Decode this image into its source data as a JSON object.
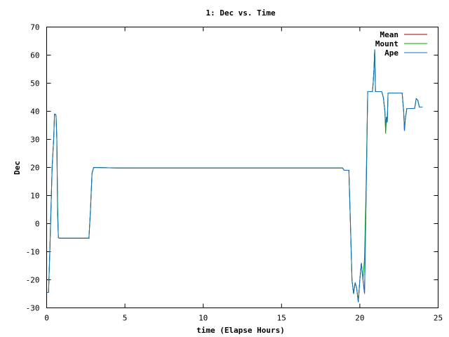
{
  "chart_data": {
    "type": "line",
    "title": "1: Dec vs. Time",
    "xlabel": "time (Elapse Hours)",
    "ylabel": "Dec",
    "xlim": [
      0,
      25
    ],
    "ylim": [
      -30,
      70
    ],
    "xticks": [
      0,
      5,
      10,
      15,
      20,
      25
    ],
    "yticks": [
      -30,
      -20,
      -10,
      0,
      10,
      20,
      30,
      40,
      50,
      60,
      70
    ],
    "xtick_labels": [
      "0",
      "5",
      "10",
      "15",
      "20",
      "25"
    ],
    "ytick_labels": [
      "-30",
      "-20",
      "-10",
      "0",
      "10",
      "20",
      "30",
      "40",
      "50",
      "60",
      "70"
    ],
    "grid": false,
    "legend": "top-right",
    "series": [
      {
        "name": "Mean",
        "color": "#aa0000",
        "x": [
          0,
          0.12,
          0.15,
          0.2,
          0.25,
          0.3,
          0.35,
          0.4,
          0.45,
          0.5,
          0.55,
          0.6,
          0.65,
          0.7,
          0.75,
          0.8,
          0.85,
          0.9,
          1.0,
          1.5,
          2.0,
          2.5,
          2.7,
          2.8,
          2.9,
          3.0,
          4.5,
          10,
          13.8,
          15,
          18.9,
          19.0,
          19.3,
          19.4,
          19.5,
          19.6,
          19.7,
          19.8,
          19.9,
          20.0,
          20.1,
          20.2,
          20.3,
          20.4,
          20.5,
          20.6,
          20.7,
          20.8,
          20.85,
          20.9,
          20.95,
          21.0,
          21.1,
          21.3,
          21.4,
          21.5,
          21.6,
          21.65,
          21.7,
          21.75,
          21.8,
          21.9,
          22.0,
          22.5,
          22.7,
          22.8,
          22.85,
          22.9,
          23.0,
          23.5,
          23.6,
          23.7,
          23.8,
          24.0
        ],
        "y": [
          -24.5,
          -24.5,
          -20,
          -10,
          0,
          10,
          20,
          25,
          30,
          39,
          39,
          38.5,
          30,
          5,
          -5,
          -5.2,
          -5.2,
          -5.2,
          -5.2,
          -5.2,
          -5.2,
          -5.2,
          -5.2,
          5,
          18,
          20,
          19.8,
          19.8,
          19.8,
          19.8,
          19.8,
          19,
          19,
          0,
          -20,
          -25,
          -21,
          -23,
          -28,
          -20,
          -14,
          -20,
          -25,
          10,
          47,
          47,
          47,
          47,
          50,
          55,
          62,
          47,
          47,
          47,
          47,
          45,
          40,
          33,
          38,
          36,
          46.5,
          46.5,
          46.5,
          46.5,
          46.5,
          40,
          33,
          37,
          41,
          41,
          44.5,
          44,
          41.5,
          41.5
        ]
      },
      {
        "name": "Mount",
        "color": "#00aa00",
        "x": [
          0,
          0.12,
          0.15,
          0.2,
          0.25,
          0.3,
          0.35,
          0.4,
          0.45,
          0.5,
          0.55,
          0.6,
          0.65,
          0.7,
          0.75,
          0.8,
          0.85,
          0.9,
          1.0,
          1.5,
          2.0,
          2.5,
          2.7,
          2.8,
          2.9,
          3.0,
          4.5,
          10,
          13.8,
          15,
          18.9,
          19.0,
          19.3,
          19.4,
          19.5,
          19.6,
          19.7,
          19.8,
          19.9,
          20.0,
          20.1,
          20.2,
          20.3,
          20.4,
          20.5,
          20.6,
          20.7,
          20.8,
          20.85,
          20.9,
          20.95,
          21.0,
          21.1,
          21.3,
          21.4,
          21.5,
          21.6,
          21.65,
          21.7,
          21.75,
          21.8,
          21.9,
          22.0,
          22.5,
          22.7,
          22.8,
          22.85,
          22.9,
          23.0,
          23.5,
          23.6,
          23.7,
          23.8,
          24.0
        ],
        "y": [
          -24.5,
          -24.5,
          -20,
          -10,
          0,
          10,
          20,
          25,
          30,
          39,
          39,
          38.5,
          30,
          7,
          -5,
          -5.2,
          -5.2,
          -5.2,
          -5.2,
          -5.2,
          -5.2,
          -5.2,
          -5.2,
          5,
          18,
          20,
          19.8,
          19.8,
          19.8,
          19.8,
          19.8,
          19,
          19,
          0,
          -20,
          -25,
          -21,
          -23,
          -28,
          -20,
          -14,
          -20,
          -12,
          13,
          47,
          47,
          47,
          47,
          50,
          55,
          62,
          47,
          47,
          47,
          47,
          45,
          40,
          32,
          38,
          36,
          46.5,
          46.5,
          46.5,
          46.5,
          46.5,
          40,
          33,
          37,
          41,
          41,
          44.5,
          44,
          41.5,
          41.5
        ]
      },
      {
        "name": "Ape",
        "color": "#1070c8",
        "x": [
          0,
          0.12,
          0.15,
          0.2,
          0.25,
          0.3,
          0.35,
          0.4,
          0.45,
          0.5,
          0.55,
          0.6,
          0.65,
          0.7,
          0.75,
          0.8,
          0.85,
          0.9,
          1.0,
          1.5,
          2.0,
          2.5,
          2.7,
          2.8,
          2.9,
          3.0,
          4.5,
          10,
          13.8,
          15,
          18.9,
          19.0,
          19.3,
          19.4,
          19.5,
          19.6,
          19.7,
          19.8,
          19.9,
          20.0,
          20.1,
          20.2,
          20.3,
          20.4,
          20.5,
          20.6,
          20.7,
          20.8,
          20.85,
          20.9,
          20.95,
          21.0,
          21.1,
          21.3,
          21.4,
          21.5,
          21.6,
          21.65,
          21.7,
          21.75,
          21.8,
          21.9,
          22.0,
          22.5,
          22.7,
          22.8,
          22.85,
          22.9,
          23.0,
          23.5,
          23.6,
          23.7,
          23.8,
          24.0
        ],
        "y": [
          -24.5,
          -24.5,
          -20,
          -10,
          0,
          10,
          20,
          25,
          30,
          39,
          39,
          38.5,
          30,
          3,
          -5,
          -5.2,
          -5.2,
          -5.2,
          -5.2,
          -5.2,
          -5.2,
          -5.2,
          -5.2,
          5,
          18,
          20,
          19.8,
          19.8,
          19.8,
          19.8,
          19.8,
          19,
          19,
          0,
          -20,
          -25,
          -21,
          -23,
          -28,
          -20,
          -14,
          -20,
          -25,
          8,
          47,
          47,
          47,
          47,
          50,
          55,
          62,
          47,
          47,
          47,
          47,
          45,
          40,
          35,
          38,
          36,
          46.5,
          46.5,
          46.5,
          46.5,
          46.5,
          40,
          33,
          37,
          41,
          41,
          44.5,
          44,
          41.5,
          41.5
        ]
      }
    ]
  }
}
